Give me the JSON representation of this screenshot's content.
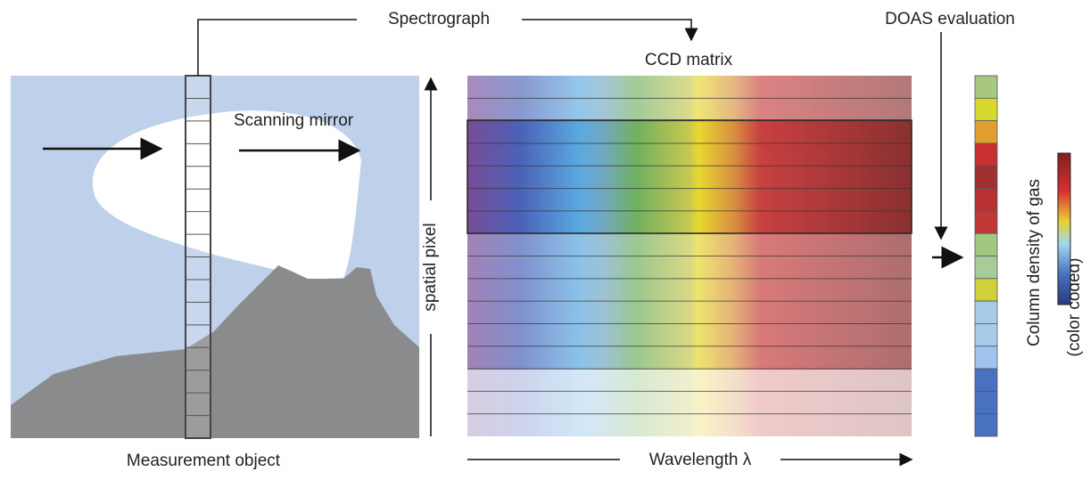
{
  "labels": {
    "spectrograph": "Spectrograph",
    "doas": "DOAS evaluation",
    "ccd": "CCD matrix",
    "mirror": "Scanning mirror",
    "spatial": "spatial pixel",
    "object": "Measurement object",
    "wavelength": "Wavelength λ",
    "density": "Column density of gas",
    "coded": "(color coded)"
  }
}
